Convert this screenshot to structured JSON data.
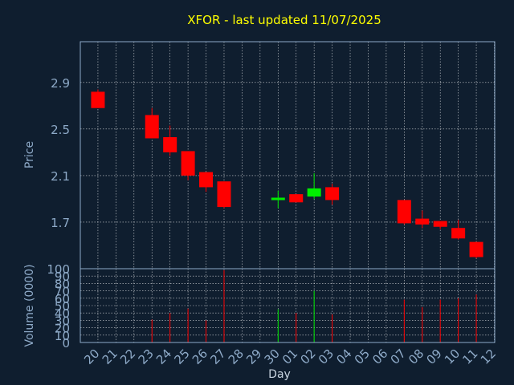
{
  "chart_data": {
    "type": "candlestick",
    "title": "XFOR - last updated 11/07/2025",
    "xlabel": "Day",
    "price_ylabel": "Price",
    "volume_ylabel": "Volume (0000)",
    "x_tick_labels": [
      "20",
      "21",
      "22",
      "23",
      "24",
      "25",
      "26",
      "27",
      "28",
      "29",
      "30",
      "01",
      "02",
      "03",
      "04",
      "05",
      "06",
      "07",
      "08",
      "09",
      "10",
      "11",
      "12"
    ],
    "price_ticks": [
      "1.7",
      "2.1",
      "2.5",
      "2.9"
    ],
    "price_tick_values": [
      1.7,
      2.1,
      2.5,
      2.9
    ],
    "price_ylim": [
      1.3,
      3.25
    ],
    "volume_ticks": [
      "0",
      "10",
      "20",
      "30",
      "40",
      "50",
      "60",
      "70",
      "80",
      "90",
      "100"
    ],
    "volume_tick_values": [
      0,
      10,
      20,
      30,
      40,
      50,
      60,
      70,
      80,
      90,
      100
    ],
    "volume_ylim": [
      0,
      100
    ],
    "grid": true,
    "colors": {
      "up": "#00ee00",
      "down": "#ff0000",
      "grid": "#ffffff",
      "axis": "#8eaac8",
      "background": "#0f1e2f",
      "title": "#ffff00"
    },
    "candles": [
      {
        "day": "20",
        "open": 2.82,
        "high": 2.84,
        "low": 2.68,
        "close": 2.68,
        "volume": 0
      },
      {
        "day": "23",
        "open": 2.62,
        "high": 2.68,
        "low": 2.42,
        "close": 2.42,
        "volume": 31
      },
      {
        "day": "24",
        "open": 2.43,
        "high": 2.53,
        "low": 2.27,
        "close": 2.3,
        "volume": 40
      },
      {
        "day": "25",
        "open": 2.31,
        "high": 2.31,
        "low": 2.06,
        "close": 2.1,
        "volume": 46
      },
      {
        "day": "26",
        "open": 2.13,
        "high": 2.13,
        "low": 1.96,
        "close": 2.0,
        "volume": 30
      },
      {
        "day": "27",
        "open": 2.05,
        "high": 2.05,
        "low": 1.82,
        "close": 1.83,
        "volume": 98
      },
      {
        "day": "30",
        "open": 1.89,
        "high": 1.97,
        "low": 1.82,
        "close": 1.91,
        "volume": 45
      },
      {
        "day": "01",
        "open": 1.94,
        "high": 1.94,
        "low": 1.87,
        "close": 1.87,
        "volume": 40
      },
      {
        "day": "02",
        "open": 1.92,
        "high": 2.12,
        "low": 1.9,
        "close": 1.99,
        "volume": 70
      },
      {
        "day": "03",
        "open": 2.0,
        "high": 2.03,
        "low": 1.85,
        "close": 1.89,
        "volume": 38
      },
      {
        "day": "07",
        "open": 1.89,
        "high": 1.89,
        "low": 1.68,
        "close": 1.69,
        "volume": 58
      },
      {
        "day": "08",
        "open": 1.73,
        "high": 1.8,
        "low": 1.65,
        "close": 1.68,
        "volume": 48
      },
      {
        "day": "09",
        "open": 1.71,
        "high": 1.71,
        "low": 1.64,
        "close": 1.66,
        "volume": 58
      },
      {
        "day": "10",
        "open": 1.65,
        "high": 1.72,
        "low": 1.55,
        "close": 1.56,
        "volume": 60
      },
      {
        "day": "11",
        "open": 1.53,
        "high": 1.53,
        "low": 1.39,
        "close": 1.4,
        "volume": 65
      }
    ]
  }
}
